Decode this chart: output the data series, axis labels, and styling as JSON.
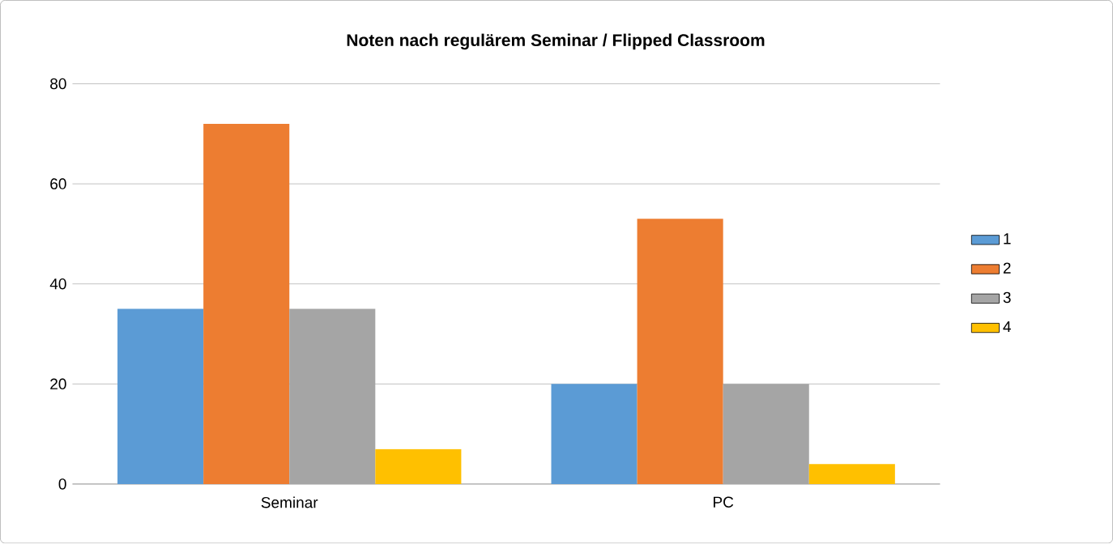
{
  "chart_data": {
    "type": "bar",
    "title": "Noten nach regulärem Seminar / Flipped Classroom",
    "categories": [
      "Seminar",
      "PC"
    ],
    "series": [
      {
        "name": "1",
        "color": "#5b9bd5",
        "values": [
          35,
          20
        ]
      },
      {
        "name": "2",
        "color": "#ed7d31",
        "values": [
          72,
          53
        ]
      },
      {
        "name": "3",
        "color": "#a5a5a5",
        "values": [
          35,
          20
        ]
      },
      {
        "name": "4",
        "color": "#ffc000",
        "values": [
          7,
          4
        ]
      }
    ],
    "ylim": [
      0,
      80
    ],
    "yticks": [
      0,
      20,
      40,
      60,
      80
    ],
    "grid": "y",
    "legend": "right"
  }
}
